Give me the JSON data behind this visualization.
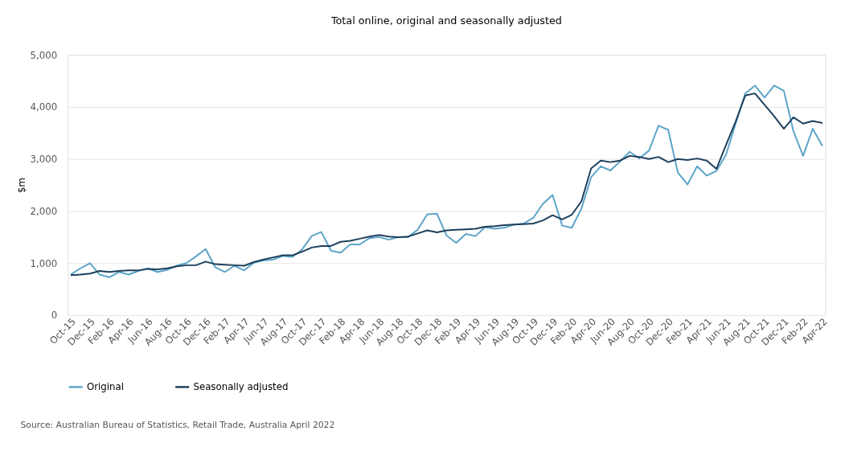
{
  "chart_data": {
    "type": "line",
    "title": "Total online, original and seasonally adjusted",
    "ylabel": "$m",
    "categories": [
      "Oct-15",
      null,
      "Dec-15",
      null,
      "Feb-16",
      null,
      "Apr-16",
      null,
      "Jun-16",
      null,
      "Aug-16",
      null,
      "Oct-16",
      null,
      "Dec-16",
      null,
      "Feb-17",
      null,
      "Apr-17",
      null,
      "Jun-17",
      null,
      "Aug-17",
      null,
      "Oct-17",
      null,
      "Dec-17",
      null,
      "Feb-18",
      null,
      "Apr-18",
      null,
      "Jun-18",
      null,
      "Aug-18",
      null,
      "Oct-18",
      null,
      "Dec-18",
      null,
      "Feb-19",
      null,
      "Apr-19",
      null,
      "Jun-19",
      null,
      "Aug-19",
      null,
      "Oct-19",
      null,
      "Dec-19",
      null,
      "Feb-20",
      null,
      "Apr-20",
      null,
      "Jun-20",
      null,
      "Aug-20",
      null,
      "Oct-20",
      null,
      "Dec-20",
      null,
      "Feb-21",
      null,
      "Apr-21",
      null,
      "Jun-21",
      null,
      "Aug-21",
      null,
      "Oct-21",
      null,
      "Dec-21",
      null,
      "Feb-22",
      null,
      "Apr-22"
    ],
    "series": [
      {
        "name": "Original",
        "color": "#5ba4c8",
        "values": [
          780,
          900,
          1000,
          780,
          730,
          830,
          780,
          850,
          900,
          830,
          870,
          950,
          1000,
          1130,
          1270,
          920,
          830,
          950,
          860,
          1010,
          1050,
          1070,
          1140,
          1120,
          1260,
          1520,
          1600,
          1240,
          1200,
          1360,
          1360,
          1480,
          1500,
          1450,
          1500,
          1500,
          1640,
          1940,
          1950,
          1530,
          1390,
          1560,
          1520,
          1690,
          1660,
          1680,
          1740,
          1760,
          1870,
          2140,
          2310,
          1720,
          1680,
          2050,
          2650,
          2860,
          2780,
          2950,
          3140,
          3010,
          3160,
          3640,
          3560,
          2740,
          2510,
          2860,
          2680,
          2770,
          3080,
          3680,
          4260,
          4410,
          4180,
          4410,
          4310,
          3530,
          3060,
          3580,
          3250
        ]
      },
      {
        "name": "Seasonally adjusted",
        "color": "#1d3f5c",
        "values": [
          770,
          780,
          800,
          850,
          830,
          850,
          860,
          860,
          890,
          880,
          900,
          940,
          960,
          960,
          1030,
          980,
          970,
          960,
          950,
          1020,
          1070,
          1110,
          1150,
          1150,
          1220,
          1300,
          1330,
          1330,
          1410,
          1430,
          1470,
          1510,
          1540,
          1510,
          1500,
          1510,
          1570,
          1630,
          1590,
          1630,
          1640,
          1650,
          1660,
          1700,
          1710,
          1730,
          1740,
          1750,
          1760,
          1820,
          1920,
          1840,
          1930,
          2190,
          2820,
          2970,
          2940,
          2970,
          3060,
          3040,
          3000,
          3040,
          2940,
          3000,
          2980,
          3010,
          2970,
          2810,
          3270,
          3720,
          4220,
          4260,
          4040,
          3820,
          3580,
          3800,
          3680,
          3730,
          3690
        ]
      }
    ],
    "ylim": [
      0,
      5000
    ],
    "yticks": [
      0,
      {
        "value": 1000,
        "label": "1,000"
      },
      {
        "value": 2000,
        "label": "2,000"
      },
      {
        "value": 3000,
        "label": "3,000"
      },
      {
        "value": 4000,
        "label": "4,000"
      },
      {
        "value": 5000,
        "label": "5,000"
      }
    ],
    "grid": "y",
    "legend": "bottom",
    "annotations": [
      "Source: Australian Bureau of Statistics, Retail Trade, Australia April 2022"
    ]
  }
}
